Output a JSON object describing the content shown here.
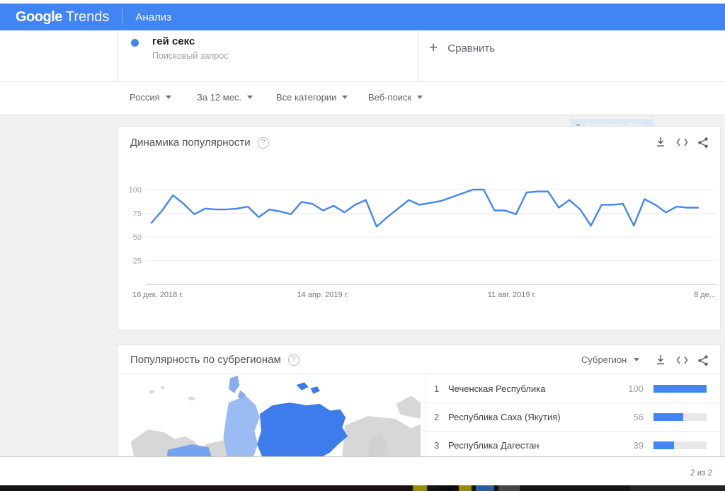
{
  "header": {
    "brand_google": "Google",
    "brand_trends": "Trends",
    "nav_item": "Анализ"
  },
  "query_bar": {
    "term": "гей секс",
    "term_subtitle": "Поисковый запрос",
    "compare_plus": "+",
    "compare_label": "Сравнить"
  },
  "filters": {
    "region": "Россия",
    "time": "За 12 мес.",
    "category": "Все категории",
    "search_type": "Веб-поиск"
  },
  "snip_tooltip": "Rectangular Snip",
  "trend_card": {
    "title": "Динамика популярности",
    "help": "?"
  },
  "chart_data": {
    "type": "line",
    "title": "Динамика популярности",
    "frequency_note": "",
    "x_tick_labels": [
      "16 дек. 2018 г.",
      "14 апр. 2019 г.",
      "11 авг. 2019 г.",
      "8 де..."
    ],
    "y_tick_labels": [
      100,
      75,
      50,
      25
    ],
    "ylim": [
      0,
      100
    ],
    "grid": true,
    "legend": "none",
    "series": [
      {
        "name": "гей секс",
        "color": "#4285f4",
        "values": [
          65,
          78,
          94,
          85,
          74,
          80,
          79,
          79,
          80,
          82,
          71,
          79,
          77,
          74,
          87,
          85,
          78,
          83,
          76,
          84,
          89,
          61,
          71,
          80,
          89,
          84,
          86,
          88,
          92,
          96,
          100,
          100,
          78,
          78,
          74,
          97,
          98,
          98,
          81,
          89,
          79,
          62,
          84,
          84,
          85,
          62,
          90,
          84,
          76,
          82,
          81,
          81
        ]
      }
    ]
  },
  "subregion_card": {
    "title": "Популярность по субрегионам",
    "help": "?",
    "sort_dropdown": "Субрегион",
    "rows": [
      {
        "rank": "1",
        "name": "Чеченская Республика",
        "value": 100
      },
      {
        "rank": "2",
        "name": "Республика Саха (Якутия)",
        "value": 56
      },
      {
        "rank": "3",
        "name": "Республика Дагестан",
        "value": 39
      }
    ]
  },
  "footer": {
    "pagination": "2 из 2"
  },
  "colors": {
    "accent": "#4285f4",
    "header_bg": "#4184f3",
    "line": "#4285f4",
    "bar_fill": "#4285f4",
    "bar_track": "#e8e8e8",
    "map_dark": "#3d7cea",
    "map_medium": "#76a3ee",
    "map_light": "#9bbcf2",
    "map_gray": "#d7d7d7"
  }
}
